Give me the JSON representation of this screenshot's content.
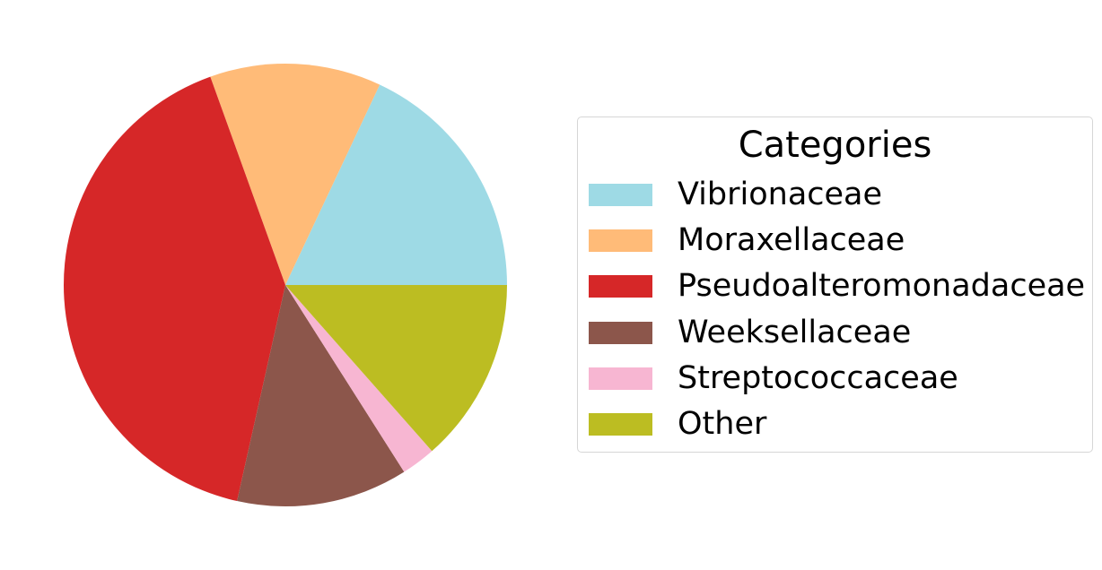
{
  "chart_data": {
    "type": "pie",
    "title": "",
    "legend": {
      "title": "Categories",
      "placement": "right"
    },
    "slices": [
      {
        "label": "Vibrionaceae",
        "value": 18.0,
        "color": "#9edae5"
      },
      {
        "label": "Moraxellaceae",
        "value": 12.5,
        "color": "#ffbb78"
      },
      {
        "label": "Pseudoalteromonadaceae",
        "value": 41.0,
        "color": "#d62728"
      },
      {
        "label": "Weeksellaceae",
        "value": 12.5,
        "color": "#8c564b"
      },
      {
        "label": "Streptococcaceae",
        "value": 2.5,
        "color": "#f7b6d2"
      },
      {
        "label": "Other",
        "value": 13.5,
        "color": "#bcbd22"
      }
    ],
    "start_angle_deg": 0,
    "direction": "counterclockwise"
  }
}
